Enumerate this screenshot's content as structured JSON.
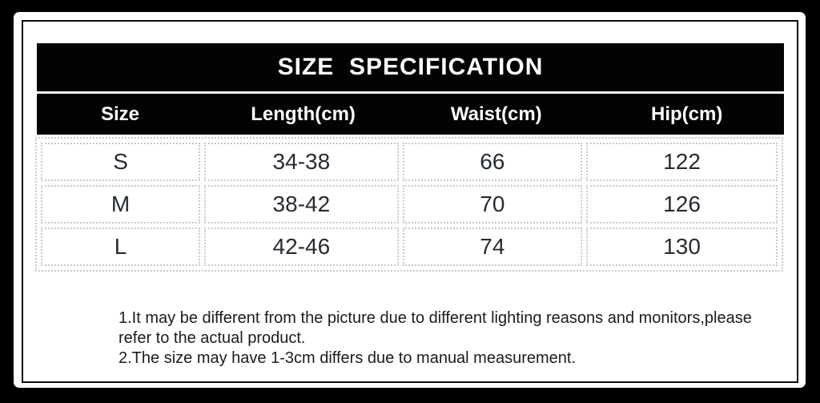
{
  "frame": {
    "outer_background": "#000000",
    "card_background": "#ffffff",
    "inner_border_color": "#0c0c0c"
  },
  "table": {
    "title": "SIZE  SPECIFICATION",
    "title_bg": "#030303",
    "title_color": "#ffffff",
    "header_bg": "#030303",
    "header_color": "#ffffff",
    "cell_border_color": "#c9c9c9",
    "cell_text_color": "#272b33",
    "columns": [
      "Size",
      "Length(cm)",
      "Waist(cm)",
      "Hip(cm)"
    ],
    "rows": [
      {
        "size": "S",
        "length": "34-38",
        "waist": "66",
        "hip": "122"
      },
      {
        "size": "M",
        "length": "38-42",
        "waist": "70",
        "hip": "126"
      },
      {
        "size": "L",
        "length": "42-46",
        "waist": "74",
        "hip": "130"
      }
    ]
  },
  "notes": {
    "lines": [
      "1.It may be different from the picture due to different lighting reasons and monitors,please",
      "refer to the actual product.",
      "2.The size may have 1-3cm differs due to manual measurement."
    ]
  }
}
